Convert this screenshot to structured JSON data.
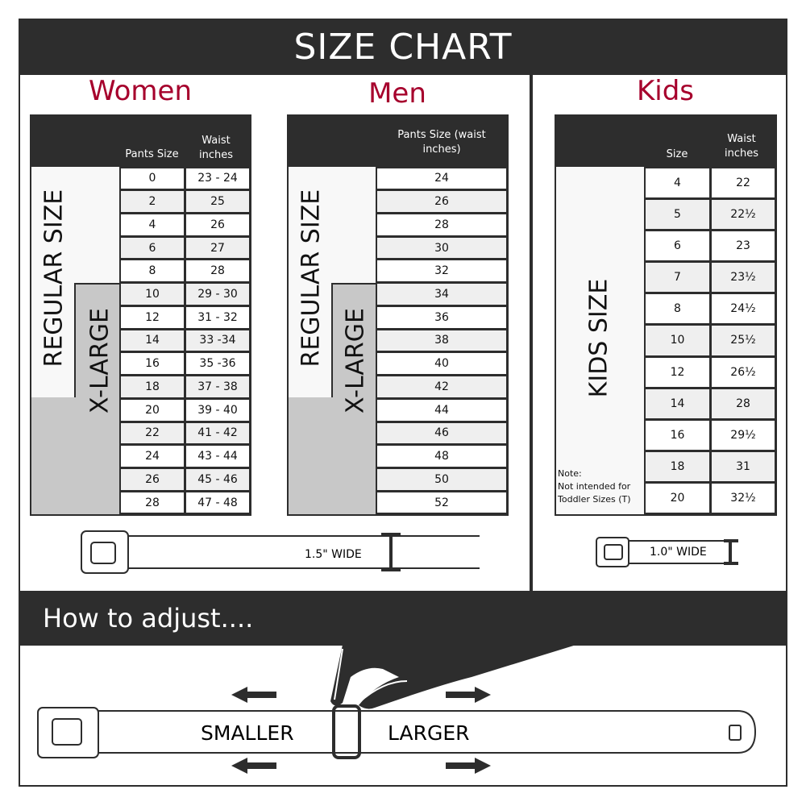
{
  "header": {
    "title": "SIZE CHART"
  },
  "women": {
    "title": "Women",
    "col1": "Pants Size",
    "col2": "Waist inches",
    "regular_label": "REGULAR SIZE",
    "xlarge_label": "X-LARGE",
    "rows": [
      [
        "0",
        "23 - 24"
      ],
      [
        "2",
        "25"
      ],
      [
        "4",
        "26"
      ],
      [
        "6",
        "27"
      ],
      [
        "8",
        "28"
      ],
      [
        "10",
        "29 - 30"
      ],
      [
        "12",
        "31 - 32"
      ],
      [
        "14",
        "33 -34"
      ],
      [
        "16",
        "35 -36"
      ],
      [
        "18",
        "37 - 38"
      ],
      [
        "20",
        "39 - 40"
      ],
      [
        "22",
        "41 - 42"
      ],
      [
        "24",
        "43 - 44"
      ],
      [
        "26",
        "45 - 46"
      ],
      [
        "28",
        "47 - 48"
      ]
    ],
    "belt_width": "1.5\" WIDE"
  },
  "men": {
    "title": "Men",
    "col1": "Pants Size (waist inches)",
    "regular_label": "REGULAR SIZE",
    "xlarge_label": "X-LARGE",
    "rows": [
      "24",
      "26",
      "28",
      "30",
      "32",
      "34",
      "36",
      "38",
      "40",
      "42",
      "44",
      "46",
      "48",
      "50",
      "52"
    ]
  },
  "kids": {
    "title": "Kids",
    "col1": "Size",
    "col2": "Waist inches",
    "label": "KIDS SIZE",
    "note_title": "Note:",
    "note_text": "Not intended for Toddler Sizes (T)",
    "rows": [
      [
        "4",
        "22"
      ],
      [
        "5",
        "22½"
      ],
      [
        "6",
        "23"
      ],
      [
        "7",
        "23½"
      ],
      [
        "8",
        "24½"
      ],
      [
        "10",
        "25½"
      ],
      [
        "12",
        "26½"
      ],
      [
        "14",
        "28"
      ],
      [
        "16",
        "29½"
      ],
      [
        "18",
        "31"
      ],
      [
        "20",
        "32½"
      ]
    ],
    "belt_width": "1.0\" WIDE"
  },
  "adjust": {
    "title": "How to adjust....",
    "smaller": "SMALLER",
    "larger": "LARGER"
  },
  "colors": {
    "dark": "#2d2d2d",
    "accent": "#a6002c",
    "row_alt": "#efefef",
    "xlarge_fill": "#c8c8c8"
  }
}
